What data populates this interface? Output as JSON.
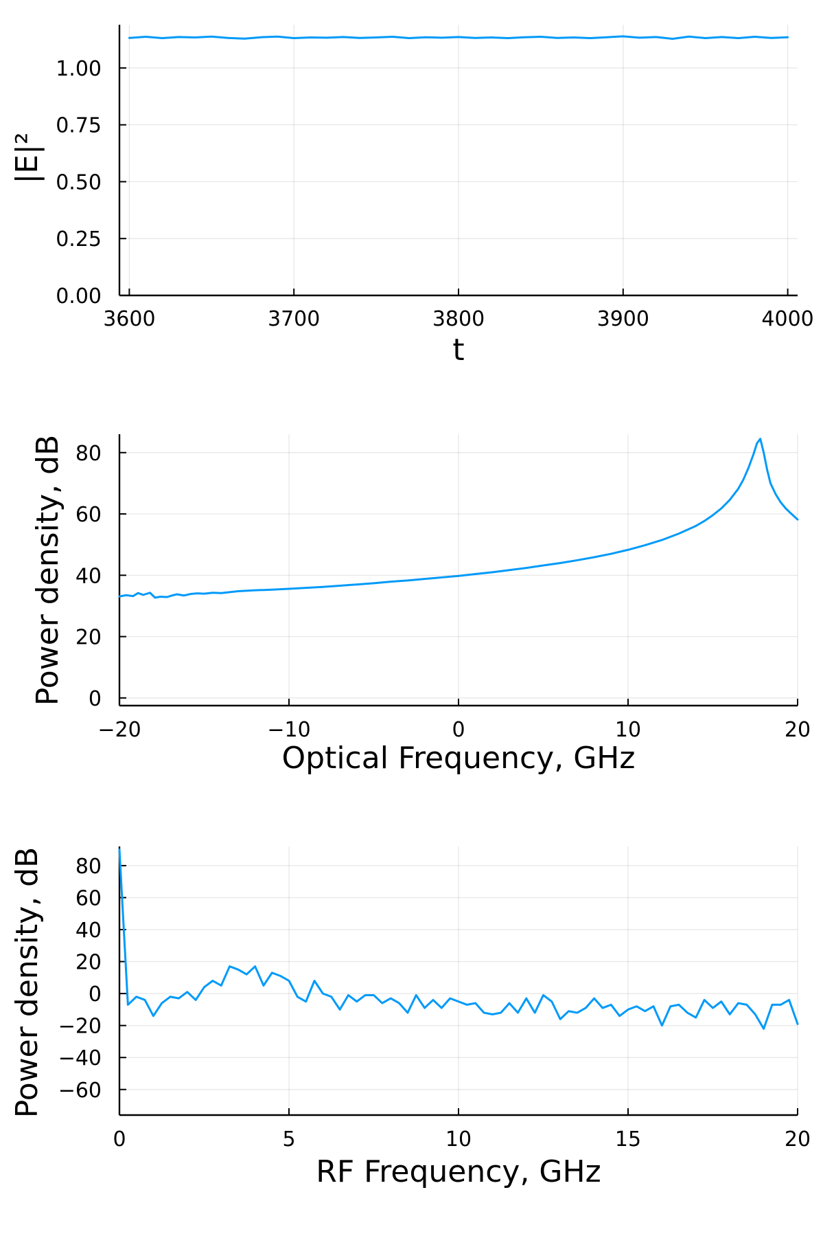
{
  "colors": {
    "series": "#009af9",
    "axis": "#000000",
    "grid": "#e5e5e5",
    "background": "#ffffff"
  },
  "chart_data": [
    {
      "type": "line",
      "title": "",
      "xlabel": "t",
      "ylabel": "|E|²",
      "xlim": [
        3594,
        4006
      ],
      "ylim": [
        0.0,
        1.19
      ],
      "xticks": [
        3600,
        3700,
        3800,
        3900,
        4000
      ],
      "xtick_labels": [
        "3600",
        "3700",
        "3800",
        "3900",
        "4000"
      ],
      "yticks": [
        0.0,
        0.25,
        0.5,
        0.75,
        1.0
      ],
      "ytick_labels": [
        "0.00",
        "0.25",
        "0.50",
        "0.75",
        "1.00"
      ],
      "grid": true,
      "legend": "none",
      "series": [
        {
          "x": [
            3600,
            3610,
            3620,
            3630,
            3640,
            3650,
            3660,
            3670,
            3680,
            3690,
            3700,
            3710,
            3720,
            3730,
            3740,
            3750,
            3760,
            3770,
            3780,
            3790,
            3800,
            3810,
            3820,
            3830,
            3840,
            3850,
            3860,
            3870,
            3880,
            3890,
            3900,
            3910,
            3920,
            3930,
            3940,
            3950,
            3960,
            3970,
            3980,
            3990,
            4000
          ],
          "y": [
            1.132,
            1.137,
            1.131,
            1.136,
            1.134,
            1.138,
            1.132,
            1.129,
            1.135,
            1.138,
            1.131,
            1.134,
            1.133,
            1.136,
            1.132,
            1.134,
            1.137,
            1.131,
            1.135,
            1.133,
            1.136,
            1.132,
            1.134,
            1.131,
            1.135,
            1.137,
            1.132,
            1.134,
            1.131,
            1.135,
            1.139,
            1.133,
            1.136,
            1.128,
            1.138,
            1.131,
            1.136,
            1.131,
            1.137,
            1.132,
            1.135
          ]
        }
      ]
    },
    {
      "type": "line",
      "title": "",
      "xlabel": "Optical Frequency, GHz",
      "ylabel": "Power density, dB",
      "xlim": [
        -20,
        20
      ],
      "ylim": [
        -2.5,
        86
      ],
      "xticks": [
        -20,
        -10,
        0,
        10,
        20
      ],
      "xtick_labels": [
        "−20",
        "−10",
        "0",
        "10",
        "20"
      ],
      "yticks": [
        0,
        20,
        40,
        60,
        80
      ],
      "ytick_labels": [
        "0",
        "20",
        "40",
        "60",
        "80"
      ],
      "grid": true,
      "legend": "none",
      "series": [
        {
          "x": [
            -20,
            -19.6,
            -19.2,
            -18.9,
            -18.6,
            -18.2,
            -17.9,
            -17.6,
            -17.2,
            -16.9,
            -16.6,
            -16.2,
            -15.8,
            -15.4,
            -15,
            -14.5,
            -14,
            -13,
            -12,
            -11,
            -10,
            -9,
            -8,
            -7,
            -6,
            -5,
            -4,
            -3,
            -2,
            -1,
            0,
            1,
            2,
            3,
            4,
            5,
            6,
            7,
            8,
            9,
            10,
            11,
            12,
            13,
            14,
            14.5,
            15,
            15.5,
            16,
            16.5,
            16.8,
            17.1,
            17.4,
            17.6,
            17.8,
            18,
            18.2,
            18.4,
            18.7,
            19,
            19.3,
            19.6,
            20
          ],
          "y": [
            33.1,
            33.5,
            33.2,
            34.2,
            33.6,
            34.3,
            32.7,
            33.0,
            32.9,
            33.4,
            33.8,
            33.4,
            33.9,
            34.1,
            34.0,
            34.3,
            34.2,
            34.8,
            35.1,
            35.3,
            35.6,
            35.9,
            36.2,
            36.6,
            37.0,
            37.4,
            37.9,
            38.3,
            38.8,
            39.3,
            39.8,
            40.4,
            41.0,
            41.7,
            42.4,
            43.2,
            44.0,
            44.9,
            45.9,
            47.0,
            48.3,
            49.8,
            51.5,
            53.6,
            56.1,
            57.7,
            59.6,
            61.8,
            64.6,
            68.2,
            71.2,
            75.0,
            79.5,
            83.0,
            84.5,
            80.0,
            74.5,
            70.0,
            66.5,
            63.8,
            61.8,
            60.2,
            58.2
          ]
        }
      ]
    },
    {
      "type": "line",
      "title": "",
      "xlabel": "RF Frequency, GHz",
      "ylabel": "Power density, dB",
      "xlim": [
        0,
        20
      ],
      "ylim": [
        -76,
        92
      ],
      "xticks": [
        0,
        5,
        10,
        15,
        20
      ],
      "xtick_labels": [
        "0",
        "5",
        "10",
        "15",
        "20"
      ],
      "yticks": [
        -60,
        -40,
        -20,
        0,
        20,
        40,
        60,
        80
      ],
      "ytick_labels": [
        "−60",
        "−40",
        "−20",
        "0",
        "20",
        "40",
        "60",
        "80"
      ],
      "grid": true,
      "legend": "none",
      "series": [
        {
          "x": [
            0,
            0.25,
            0.5,
            0.75,
            1.0,
            1.25,
            1.5,
            1.75,
            2.0,
            2.25,
            2.5,
            2.75,
            3.0,
            3.25,
            3.5,
            3.75,
            4.0,
            4.25,
            4.5,
            4.75,
            5.0,
            5.25,
            5.5,
            5.75,
            6.0,
            6.25,
            6.5,
            6.75,
            7.0,
            7.25,
            7.5,
            7.75,
            8.0,
            8.25,
            8.5,
            8.75,
            9.0,
            9.25,
            9.5,
            9.75,
            10.0,
            10.25,
            10.5,
            10.75,
            11.0,
            11.25,
            11.5,
            11.75,
            12.0,
            12.25,
            12.5,
            12.75,
            13.0,
            13.25,
            13.5,
            13.75,
            14.0,
            14.25,
            14.5,
            14.75,
            15.0,
            15.25,
            15.5,
            15.75,
            16.0,
            16.25,
            16.5,
            16.75,
            17.0,
            17.25,
            17.5,
            17.75,
            18.0,
            18.25,
            18.5,
            18.75,
            19.0,
            19.25,
            19.5,
            19.75,
            20.0
          ],
          "y": [
            90,
            -7,
            -2,
            -4,
            -14,
            -6,
            -2,
            -3,
            1,
            -4,
            4,
            8,
            5,
            17,
            15,
            12,
            17,
            5,
            13,
            11,
            8,
            -2,
            -5,
            8,
            0,
            -2,
            -10,
            -1,
            -5,
            -1,
            -1,
            -6,
            -3,
            -6,
            -12,
            -1,
            -9,
            -4,
            -9,
            -3,
            -5,
            -7,
            -6,
            -12,
            -13,
            -12,
            -6,
            -12,
            -3,
            -12,
            -1,
            -5,
            -16,
            -11,
            -12,
            -9,
            -3,
            -9,
            -7,
            -14,
            -10,
            -8,
            -11,
            -8,
            -20,
            -8,
            -7,
            -12,
            -15,
            -4,
            -9,
            -5,
            -13,
            -6,
            -7,
            -13,
            -22,
            -7,
            -7,
            -4,
            -19
          ]
        }
      ]
    }
  ]
}
